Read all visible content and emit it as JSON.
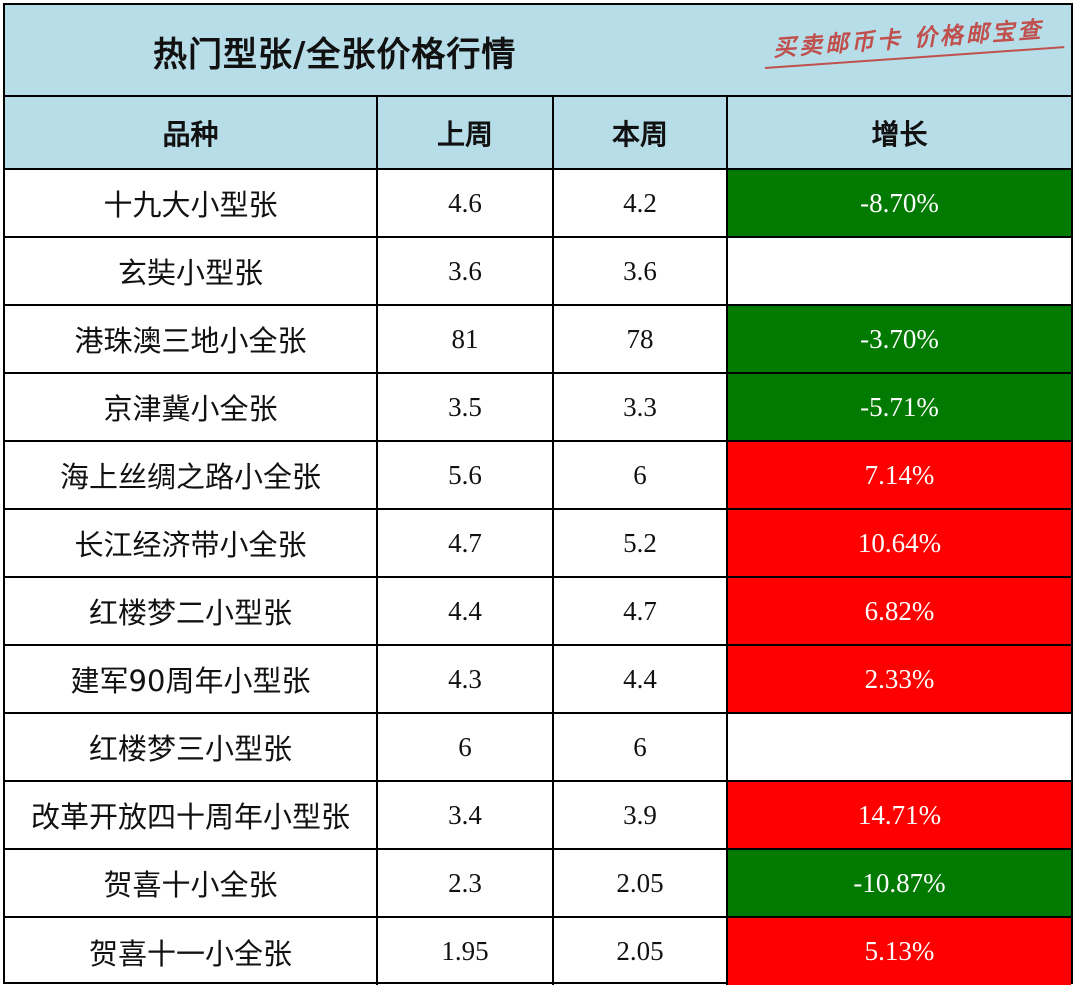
{
  "title": "热门型张/全张价格行情",
  "stamp_text": "买卖邮币卡 价格邮宝查",
  "colors": {
    "header_bg": "#b7dde8",
    "decrease": "#007a00",
    "increase": "#ff0000",
    "stamp": "#c0504d"
  },
  "table": {
    "headers": [
      "品种",
      "上周",
      "本周",
      "增长"
    ],
    "rows": [
      {
        "name": "十九大小型张",
        "last_week": "4.6",
        "this_week": "4.2",
        "change": "-8.70%",
        "trend": "down"
      },
      {
        "name": "玄奘小型张",
        "last_week": "3.6",
        "this_week": "3.6",
        "change": "",
        "trend": "flat"
      },
      {
        "name": "港珠澳三地小全张",
        "last_week": "81",
        "this_week": "78",
        "change": "-3.70%",
        "trend": "down"
      },
      {
        "name": "京津冀小全张",
        "last_week": "3.5",
        "this_week": "3.3",
        "change": "-5.71%",
        "trend": "down"
      },
      {
        "name": "海上丝绸之路小全张",
        "last_week": "5.6",
        "this_week": "6",
        "change": "7.14%",
        "trend": "up"
      },
      {
        "name": "长江经济带小全张",
        "last_week": "4.7",
        "this_week": "5.2",
        "change": "10.64%",
        "trend": "up"
      },
      {
        "name": "红楼梦二小型张",
        "last_week": "4.4",
        "this_week": "4.7",
        "change": "6.82%",
        "trend": "up"
      },
      {
        "name": "建军90周年小型张",
        "last_week": "4.3",
        "this_week": "4.4",
        "change": "2.33%",
        "trend": "up"
      },
      {
        "name": "红楼梦三小型张",
        "last_week": "6",
        "this_week": "6",
        "change": "",
        "trend": "flat"
      },
      {
        "name": "改革开放四十周年小型张",
        "last_week": "3.4",
        "this_week": "3.9",
        "change": "14.71%",
        "trend": "up"
      },
      {
        "name": "贺喜十小全张",
        "last_week": "2.3",
        "this_week": "2.05",
        "change": "-10.87%",
        "trend": "down"
      },
      {
        "name": "贺喜十一小全张",
        "last_week": "1.95",
        "this_week": "2.05",
        "change": "5.13%",
        "trend": "up"
      }
    ]
  }
}
